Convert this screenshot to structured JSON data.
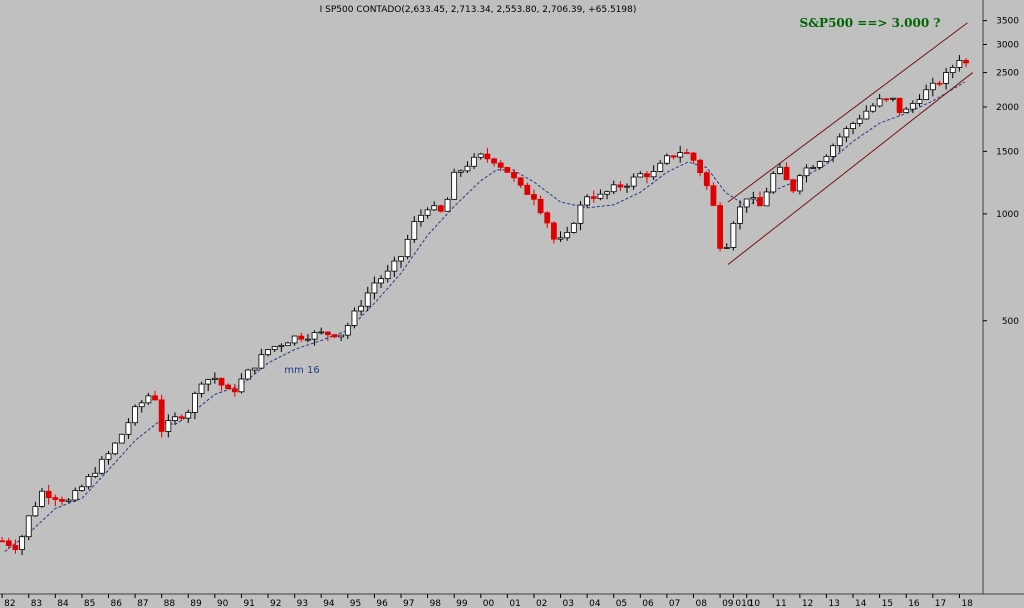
{
  "chart_data": {
    "type": "candlestick",
    "title": "I SP500 CONTADO(2,633.45, 2,713.34, 2,553.80, 2,706.39, +65.5198)",
    "annotation": "S&P500 ==> 3.000 ?",
    "ma_label": "mm 16",
    "y_scale": "log",
    "ylim": [
      85,
      3800
    ],
    "xlim": [
      1981.92,
      2018.85
    ],
    "y_ticks": [
      3500,
      3000,
      2500,
      2000,
      1500,
      1000,
      500
    ],
    "x_ticks": [
      "82",
      "83",
      "84",
      "85",
      "86",
      "87",
      "88",
      "89",
      "90",
      "91",
      "92",
      "93",
      "94",
      "95",
      "96",
      "97",
      "98",
      "99",
      "00",
      "01",
      "02",
      "03",
      "04",
      "05",
      "06",
      "07",
      "08",
      "09",
      "010",
      "10",
      "11",
      "12",
      "13",
      "14",
      "15",
      "16",
      "17",
      "18"
    ],
    "x_tick_positions": [
      1982,
      1983,
      1984,
      1985,
      1986,
      1987,
      1988,
      1989,
      1990,
      1991,
      1992,
      1993,
      1994,
      1995,
      1996,
      1997,
      1998,
      1999,
      2000,
      2001,
      2002,
      2003,
      2004,
      2005,
      2006,
      2007,
      2008,
      2009,
      2009.5,
      2010,
      2011,
      2012,
      2013,
      2014,
      2015,
      2016,
      2017,
      2018
    ],
    "anchors": [
      [
        1982.0,
        120
      ],
      [
        1982.6,
        115
      ],
      [
        1983.0,
        140
      ],
      [
        1983.5,
        165
      ],
      [
        1984.0,
        160
      ],
      [
        1984.5,
        155
      ],
      [
        1985.0,
        170
      ],
      [
        1985.5,
        190
      ],
      [
        1986.0,
        210
      ],
      [
        1986.5,
        240
      ],
      [
        1987.0,
        280
      ],
      [
        1987.7,
        320
      ],
      [
        1987.95,
        245
      ],
      [
        1988.5,
        265
      ],
      [
        1989.0,
        280
      ],
      [
        1989.5,
        340
      ],
      [
        1990.0,
        345
      ],
      [
        1990.6,
        310
      ],
      [
        1991.0,
        340
      ],
      [
        1992.0,
        415
      ],
      [
        1993.0,
        450
      ],
      [
        1994.0,
        460
      ],
      [
        1994.8,
        460
      ],
      [
        1995.5,
        560
      ],
      [
        1996.0,
        640
      ],
      [
        1996.5,
        680
      ],
      [
        1997.0,
        760
      ],
      [
        1997.5,
        940
      ],
      [
        1998.0,
        1050
      ],
      [
        1998.6,
        1000
      ],
      [
        1999.0,
        1280
      ],
      [
        1999.5,
        1380
      ],
      [
        2000.0,
        1450
      ],
      [
        2000.5,
        1420
      ],
      [
        2001.0,
        1320
      ],
      [
        2001.5,
        1180
      ],
      [
        2002.0,
        1120
      ],
      [
        2002.5,
        950
      ],
      [
        2002.8,
        830
      ],
      [
        2003.2,
        850
      ],
      [
        2003.6,
        1000
      ],
      [
        2004.0,
        1130
      ],
      [
        2004.5,
        1120
      ],
      [
        2005.0,
        1180
      ],
      [
        2005.5,
        1220
      ],
      [
        2006.0,
        1290
      ],
      [
        2006.5,
        1300
      ],
      [
        2007.0,
        1430
      ],
      [
        2007.5,
        1500
      ],
      [
        2007.9,
        1460
      ],
      [
        2008.3,
        1300
      ],
      [
        2008.7,
        1100
      ],
      [
        2009.0,
        820
      ],
      [
        2009.2,
        800
      ],
      [
        2009.5,
        960
      ],
      [
        2010.0,
        1120
      ],
      [
        2010.5,
        1050
      ],
      [
        2011.0,
        1290
      ],
      [
        2011.3,
        1330
      ],
      [
        2011.7,
        1150
      ],
      [
        2012.0,
        1310
      ],
      [
        2012.5,
        1380
      ],
      [
        2013.0,
        1480
      ],
      [
        2013.5,
        1650
      ],
      [
        2014.0,
        1800
      ],
      [
        2014.5,
        1950
      ],
      [
        2015.0,
        2080
      ],
      [
        2015.5,
        2090
      ],
      [
        2015.7,
        1950
      ],
      [
        2016.0,
        1950
      ],
      [
        2016.5,
        2150
      ],
      [
        2017.0,
        2280
      ],
      [
        2017.5,
        2450
      ],
      [
        2018.0,
        2750
      ],
      [
        2018.2,
        2650
      ]
    ],
    "ma_anchors": [
      [
        1982.1,
        112
      ],
      [
        1983.0,
        126
      ],
      [
        1984.0,
        148
      ],
      [
        1985.0,
        158
      ],
      [
        1986.0,
        190
      ],
      [
        1987.0,
        230
      ],
      [
        1987.9,
        260
      ],
      [
        1988.5,
        255
      ],
      [
        1989.0,
        270
      ],
      [
        1990.0,
        310
      ],
      [
        1990.5,
        320
      ],
      [
        1991.0,
        330
      ],
      [
        1992.0,
        380
      ],
      [
        1993.0,
        415
      ],
      [
        1994.0,
        440
      ],
      [
        1995.0,
        470
      ],
      [
        1996.0,
        560
      ],
      [
        1997.0,
        680
      ],
      [
        1998.0,
        870
      ],
      [
        1999.0,
        1050
      ],
      [
        2000.0,
        1240
      ],
      [
        2000.6,
        1330
      ],
      [
        2001.2,
        1330
      ],
      [
        2002.0,
        1230
      ],
      [
        2003.0,
        1080
      ],
      [
        2004.0,
        1040
      ],
      [
        2005.0,
        1060
      ],
      [
        2006.0,
        1150
      ],
      [
        2007.0,
        1310
      ],
      [
        2007.8,
        1400
      ],
      [
        2008.5,
        1350
      ],
      [
        2009.2,
        1150
      ],
      [
        2010.0,
        1050
      ],
      [
        2011.0,
        1160
      ],
      [
        2012.0,
        1250
      ],
      [
        2013.0,
        1380
      ],
      [
        2014.0,
        1600
      ],
      [
        2015.0,
        1800
      ],
      [
        2016.0,
        1920
      ],
      [
        2017.0,
        2080
      ],
      [
        2018.2,
        2350
      ]
    ],
    "channel": {
      "upper": [
        [
          2009.3,
          1080
        ],
        [
          2018.3,
          3450
        ]
      ],
      "lower": [
        [
          2009.3,
          720
        ],
        [
          2018.5,
          2500
        ]
      ]
    }
  }
}
